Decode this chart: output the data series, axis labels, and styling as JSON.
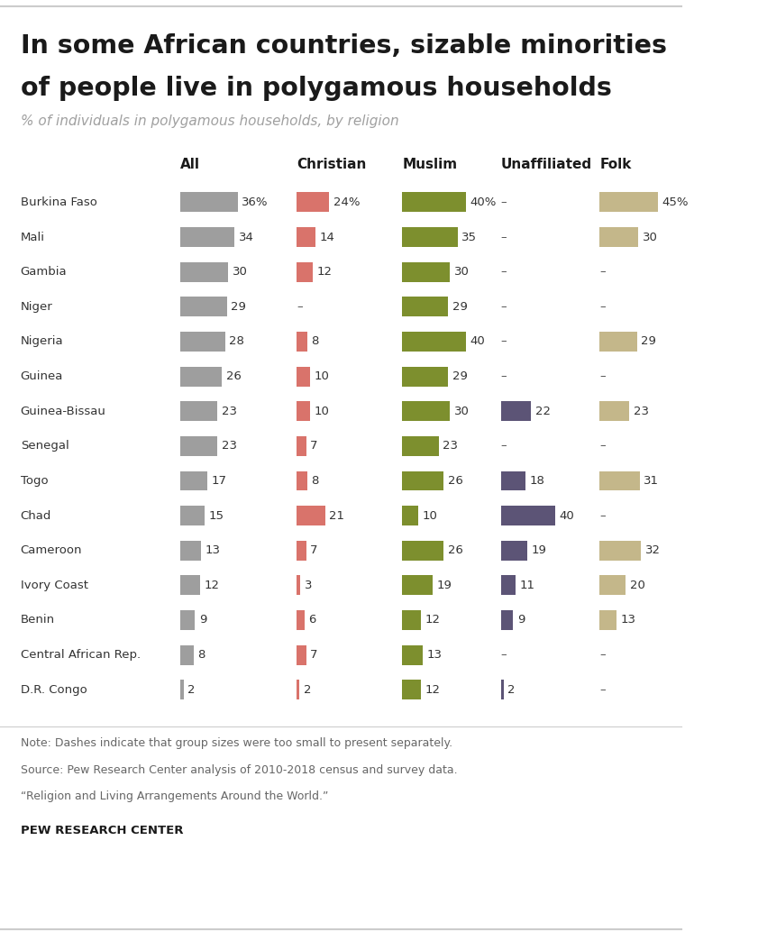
{
  "title_line1": "In some African countries, sizable minorities",
  "title_line2": "of people live in polygamous households",
  "subtitle": "% of individuals in polygamous households, by religion",
  "note_line1": "Note: Dashes indicate that group sizes were too small to present separately.",
  "note_line2": "Source: Pew Research Center analysis of 2010-2018 census and survey data.",
  "note_line3": "“Religion and Living Arrangements Around the World.”",
  "source_label": "PEW RESEARCH CENTER",
  "columns": [
    "All",
    "Christian",
    "Muslim",
    "Unaffiliated",
    "Folk"
  ],
  "countries": [
    "Burkina Faso",
    "Mali",
    "Gambia",
    "Niger",
    "Nigeria",
    "Guinea",
    "Guinea-Bissau",
    "Senegal",
    "Togo",
    "Chad",
    "Cameroon",
    "Ivory Coast",
    "Benin",
    "Central African Rep.",
    "D.R. Congo"
  ],
  "data": {
    "All": [
      36,
      34,
      30,
      29,
      28,
      26,
      23,
      23,
      17,
      15,
      13,
      12,
      9,
      8,
      2
    ],
    "Christian": [
      24,
      14,
      12,
      null,
      8,
      10,
      10,
      7,
      8,
      21,
      7,
      3,
      6,
      7,
      2
    ],
    "Muslim": [
      40,
      35,
      30,
      29,
      40,
      29,
      30,
      23,
      26,
      10,
      26,
      19,
      12,
      13,
      12
    ],
    "Unaffiliated": [
      null,
      null,
      null,
      null,
      null,
      null,
      22,
      null,
      18,
      40,
      19,
      11,
      9,
      null,
      2
    ],
    "Folk": [
      45,
      30,
      null,
      null,
      29,
      null,
      23,
      null,
      31,
      null,
      32,
      20,
      13,
      null,
      null
    ]
  },
  "colors": {
    "All": "#9e9e9e",
    "Christian": "#d9736b",
    "Muslim": "#7d8f2e",
    "Unaffiliated": "#5c5476",
    "Folk": "#c4b78a"
  },
  "scale_max": 45,
  "background_color": "#ffffff",
  "title_color": "#1a1a1a",
  "subtitle_color": "#a0a0a0",
  "country_color": "#333333",
  "value_color": "#333333",
  "note_color": "#666666",
  "dash_color": "#555555"
}
